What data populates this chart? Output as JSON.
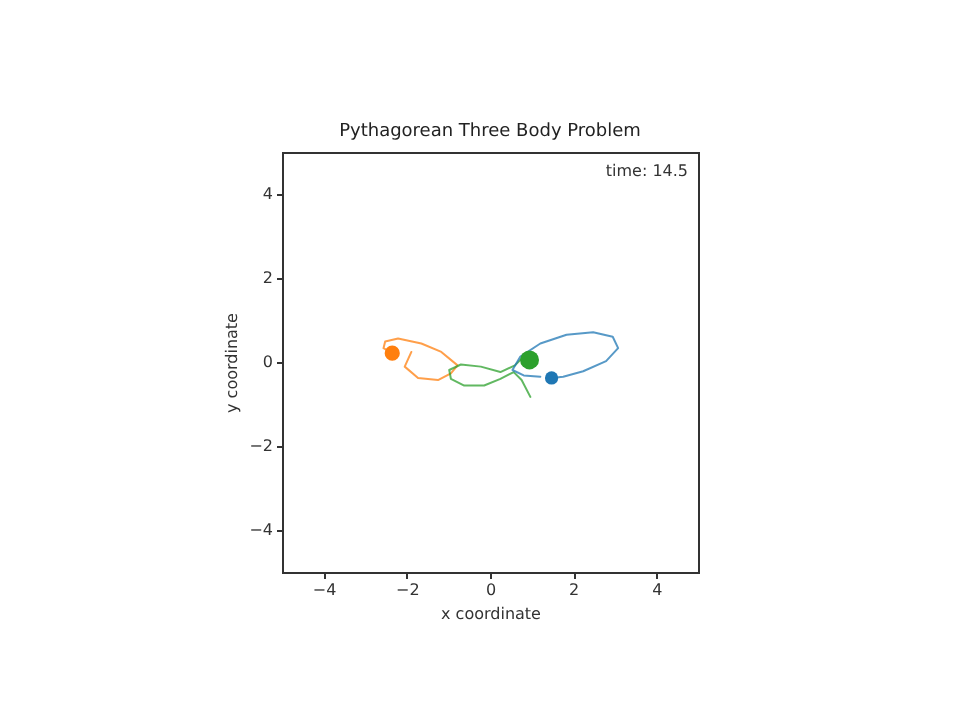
{
  "chart_data": {
    "type": "line",
    "title": "Pythagorean Three Body Problem",
    "xlabel": "x coordinate",
    "ylabel": "y coordinate",
    "xlim": [
      -5,
      5
    ],
    "ylim": [
      -5,
      5
    ],
    "xticks": [
      -4,
      -2,
      0,
      2,
      4
    ],
    "yticks": [
      -4,
      -2,
      0,
      2,
      4
    ],
    "grid": false,
    "line_style": "solid",
    "annotations": [
      "time: 14.5"
    ],
    "series": [
      {
        "marker": "none",
        "color": "#ff7f0e",
        "x": [
          -1.89,
          -2.05,
          -1.73,
          -1.25,
          -0.94,
          -0.78,
          -1.17,
          -1.65,
          -2.21,
          -2.52,
          -2.56,
          -2.35
        ],
        "values": [
          0.24,
          -0.11,
          -0.38,
          -0.43,
          -0.27,
          -0.08,
          0.24,
          0.44,
          0.56,
          0.49,
          0.33,
          0.21
        ]
      },
      {
        "marker": "none",
        "color": "#2ca02c",
        "x": [
          0.97,
          0.76,
          0.57,
          0.25,
          -0.14,
          -0.62,
          -0.94,
          -0.98,
          -0.7,
          -0.22,
          0.25,
          0.6,
          0.81,
          0.95
        ],
        "values": [
          -0.83,
          -0.43,
          -0.24,
          -0.4,
          -0.56,
          -0.56,
          -0.4,
          -0.19,
          -0.06,
          -0.11,
          -0.24,
          -0.08,
          0.13,
          0.05
        ]
      },
      {
        "marker": "none",
        "color": "#1f77b4",
        "x": [
          1.21,
          0.81,
          0.54,
          0.73,
          1.21,
          1.84,
          2.48,
          2.95,
          3.08,
          2.79,
          2.24,
          1.76,
          1.48
        ],
        "values": [
          -0.35,
          -0.32,
          -0.19,
          0.13,
          0.44,
          0.65,
          0.71,
          0.6,
          0.33,
          0.02,
          -0.22,
          -0.35,
          -0.38
        ]
      },
      {
        "type": "bubble",
        "color": "#1f77b4",
        "x": [
          1.48
        ],
        "values": [
          -0.38
        ],
        "sizes": [
          0.49
        ]
      },
      {
        "type": "bubble",
        "color": "#ff7f0e",
        "x": [
          -2.35
        ],
        "values": [
          0.21
        ],
        "sizes": [
          0.64
        ]
      },
      {
        "type": "bubble",
        "color": "#2ca02c",
        "x": [
          0.95
        ],
        "values": [
          0.05
        ],
        "sizes": [
          1
        ]
      }
    ]
  }
}
